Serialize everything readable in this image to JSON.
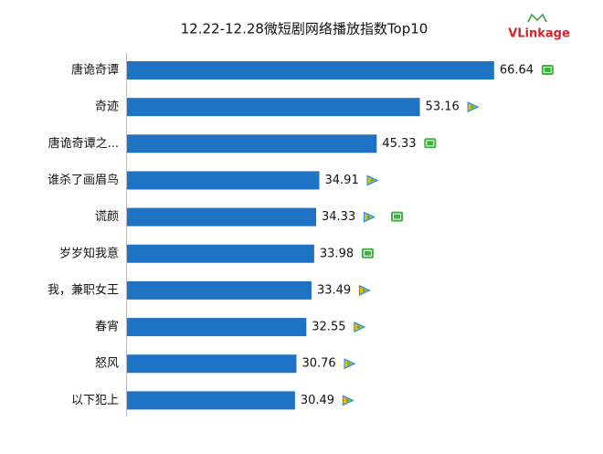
{
  "chart_data": {
    "type": "bar",
    "orientation": "horizontal",
    "title": "12.22-12.28微短剧网络播放指数Top10",
    "logo": "VLinkage",
    "categories": [
      "唐诡奇谭",
      "奇迹",
      "唐诡奇谭之...",
      "谁杀了画眉鸟",
      "谎颜",
      "岁岁知我意",
      "我，兼职女王",
      "春宵",
      "怒风",
      "以下犯上"
    ],
    "values": [
      66.64,
      53.16,
      45.33,
      34.91,
      34.33,
      33.98,
      33.49,
      32.55,
      30.76,
      30.49
    ],
    "color": "#1f73c4"
  }
}
